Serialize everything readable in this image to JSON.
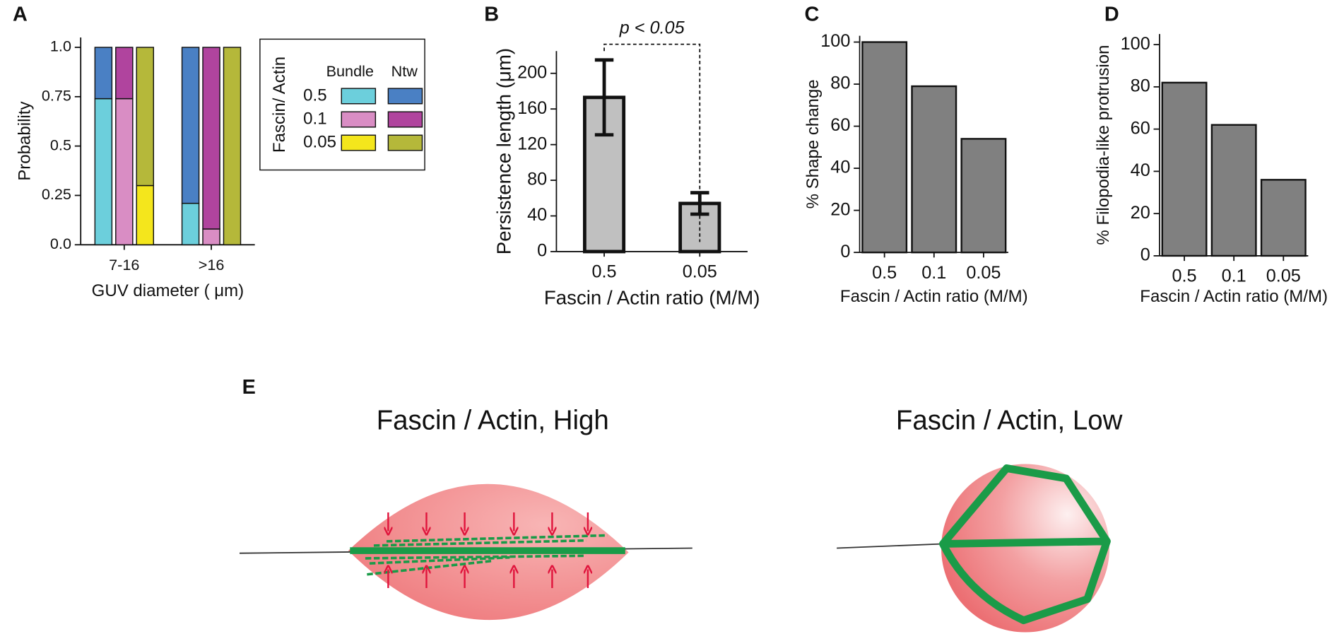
{
  "chart_data": [
    {
      "type": "stacked_groups",
      "panel": "A",
      "ylabel": "Probability",
      "xlabel": "GUV diameter ( μm)",
      "categories": [
        "7-16",
        ">16"
      ],
      "ylim": [
        0,
        1.05
      ],
      "yticks": [
        {
          "value": 0,
          "label": "0.0"
        },
        0.25,
        0.5,
        0.75,
        {
          "value": 1,
          "label": "1.0"
        }
      ],
      "legend_title": "Fascin/ Actin",
      "legend_columns": [
        "Bundle",
        "Ntw"
      ],
      "groups": [
        {
          "name": "0.5",
          "bundle": {
            "color": "#6ccfdc",
            "values": [
              0.74,
              0.21
            ]
          },
          "ntw": {
            "color": "#4a80c4",
            "values": [
              0.26,
              0.79
            ]
          }
        },
        {
          "name": "0.1",
          "bundle": {
            "color": "#d98dc4",
            "values": [
              0.74,
              0.08
            ]
          },
          "ntw": {
            "color": "#b0449e",
            "values": [
              0.26,
              0.92
            ]
          }
        },
        {
          "name": "0.05",
          "bundle": {
            "color": "#f4e61c",
            "values": [
              0.3,
              0
            ]
          },
          "ntw": {
            "color": "#b5b83a",
            "values": [
              0.7,
              1
            ]
          }
        }
      ]
    },
    {
      "type": "bar_error",
      "panel": "B",
      "ylabel": "Persistence length (μm)",
      "xlabel": "Fascin / Actin ratio (M/M)",
      "annotation": "p < 0.05",
      "categories": [
        "0.5",
        "0.05"
      ],
      "values": [
        173,
        54
      ],
      "errors": [
        42,
        12
      ],
      "color": "#c0c0c0",
      "ylim": [
        0,
        225
      ],
      "yticks": [
        0,
        40,
        80,
        120,
        160,
        200
      ]
    },
    {
      "type": "bar",
      "panel": "C",
      "ylabel": "% Shape change",
      "xlabel": "Fascin / Actin ratio (M/M)",
      "categories": [
        "0.5",
        "0.1",
        "0.05"
      ],
      "values": [
        100,
        79,
        54
      ],
      "color": "#808080",
      "ylim": [
        0,
        103
      ],
      "yticks": [
        0,
        20,
        40,
        60,
        80,
        100
      ]
    },
    {
      "type": "bar",
      "panel": "D",
      "ylabel": "% Filopodia-like protrusion",
      "xlabel": "Fascin / Actin ratio (M/M)",
      "categories": [
        "0.5",
        "0.1",
        "0.05"
      ],
      "values": [
        82,
        62,
        36
      ],
      "color": "#808080",
      "ylim": [
        0,
        105
      ],
      "yticks": [
        0,
        20,
        40,
        60,
        80,
        100
      ]
    }
  ],
  "diagram": {
    "label": "E",
    "titles": [
      "Fascin / Actin, High",
      "Fascin / Actin, Low"
    ]
  }
}
